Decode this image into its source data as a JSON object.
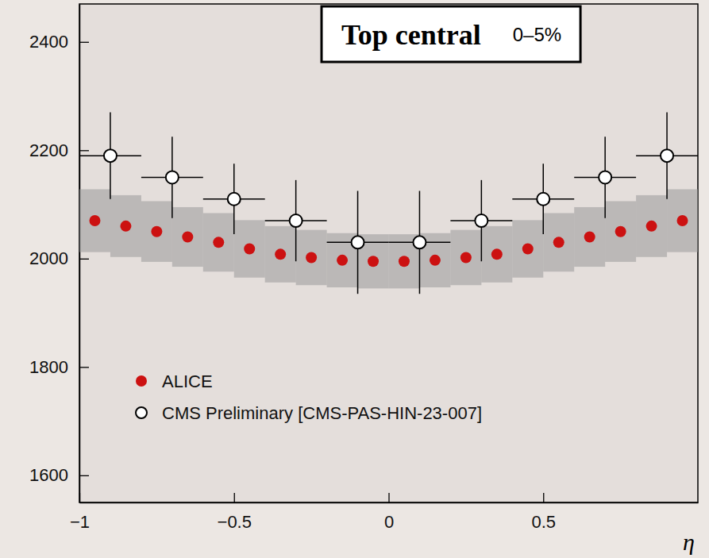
{
  "chart_data": {
    "type": "scatter",
    "title": "Top central",
    "annotation": "0–5%",
    "x_label": "η",
    "xlim": [
      -1,
      1
    ],
    "xticks": [
      -1,
      -0.5,
      0,
      0.5
    ],
    "ylim": [
      1550,
      2470
    ],
    "yticks": [
      1600,
      1800,
      2000,
      2200,
      2400
    ],
    "legend": "lower left",
    "series": [
      {
        "name": "ALICE",
        "color": "#cc1111",
        "marker": "circle",
        "x": [
          -0.95,
          -0.85,
          -0.75,
          -0.65,
          -0.55,
          -0.45,
          -0.35,
          -0.25,
          -0.15,
          -0.05,
          0.05,
          0.15,
          0.25,
          0.35,
          0.45,
          0.55,
          0.65,
          0.75,
          0.85,
          0.95
        ],
        "values": [
          2070,
          2060,
          2050,
          2040,
          2030,
          2018,
          2008,
          2002,
          1997,
          1995,
          1995,
          1997,
          2002,
          2008,
          2018,
          2030,
          2040,
          2050,
          2060,
          2070
        ],
        "errors": [
          58,
          57,
          56,
          55,
          54,
          53,
          52,
          51,
          50,
          50,
          50,
          50,
          51,
          52,
          53,
          54,
          55,
          56,
          57,
          58
        ]
      },
      {
        "name": "CMS Preliminary [CMS-PAS-HIN-23-007]",
        "color": "#000000",
        "marker": "open_circle",
        "x": [
          -0.9,
          -0.7,
          -0.5,
          -0.3,
          -0.1,
          0.1,
          0.3,
          0.5,
          0.7,
          0.9
        ],
        "values": [
          2190,
          2150,
          2110,
          2070,
          2030,
          2030,
          2070,
          2110,
          2150,
          2190
        ],
        "x_errors": [
          0.1,
          0.1,
          0.1,
          0.1,
          0.1,
          0.1,
          0.1,
          0.1,
          0.1,
          0.1
        ],
        "errors": [
          80,
          75,
          65,
          75,
          95,
          95,
          75,
          65,
          75,
          80
        ]
      }
    ]
  }
}
